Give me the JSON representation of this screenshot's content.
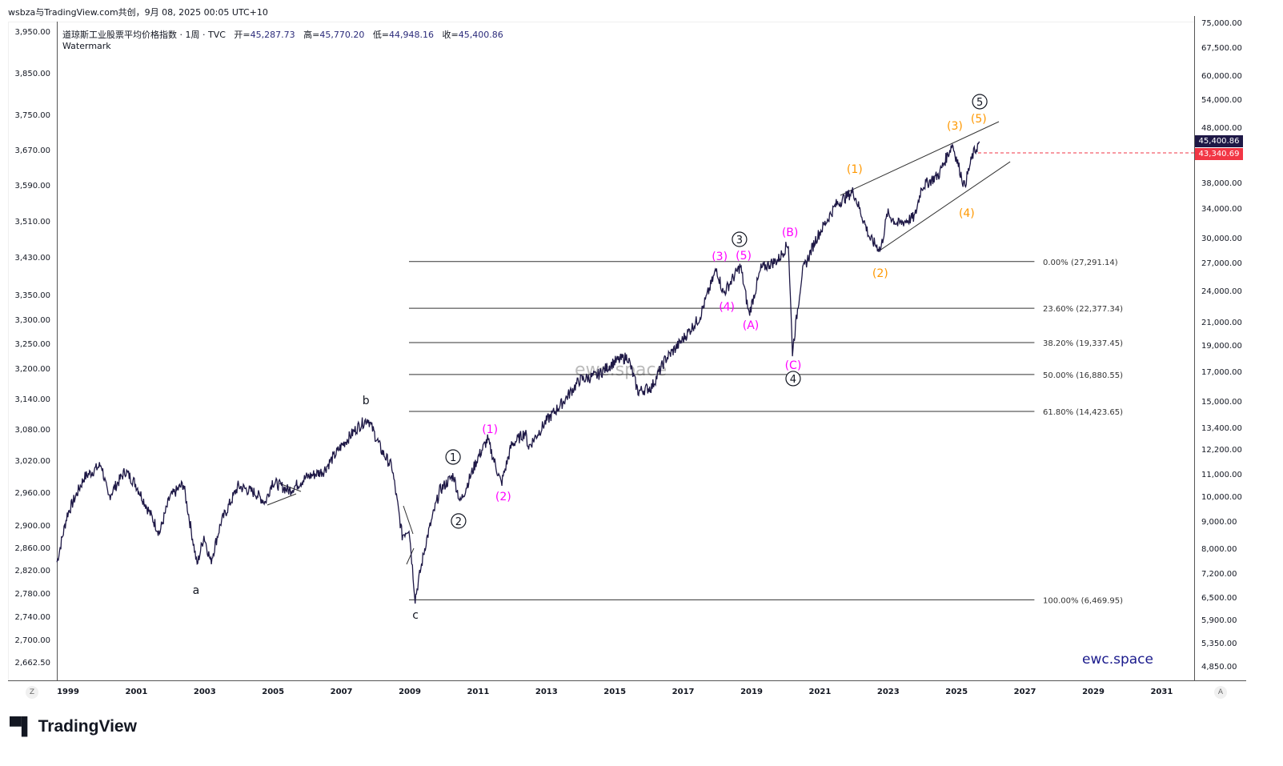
{
  "header": {
    "attribution": "wsbza与TradingView.com共创，9月 08, 2025 00:05 UTC+10"
  },
  "legend": {
    "symbol": "道琼斯工业股票平均价格指数 · 1周 · TVC",
    "open_label": "开=",
    "open": "45,287.73",
    "high_label": "高=",
    "high": "45,770.20",
    "low_label": "低=",
    "low": "44,948.16",
    "close_label": "收=",
    "close": "45,400.86",
    "watermark_line": "Watermark"
  },
  "axis_buttons": {
    "left": "Z",
    "right": "A"
  },
  "price_tags": {
    "last": "45,400.86",
    "last_color": "#1e1846",
    "line": "43,340.69",
    "line_color": "#f23645"
  },
  "watermarks": {
    "corner": "ewc.space",
    "center": "ewc.space"
  },
  "footer": {
    "logo": "TradingView"
  },
  "chart_data": {
    "type": "line",
    "scale": "log",
    "title": "道琼斯工业股票平均价格指数 · 1周 · TVC",
    "line_color": "#1e1846",
    "xlim": [
      1998.7,
      2032
    ],
    "ylim": [
      4850,
      75000
    ],
    "x_ticks": [
      "1999",
      "2001",
      "2003",
      "2005",
      "2007",
      "2009",
      "2011",
      "2013",
      "2015",
      "2017",
      "2019",
      "2021",
      "2023",
      "2025",
      "2027",
      "2029",
      "2031"
    ],
    "right_ticks": [
      75000,
      67500,
      60000,
      54000,
      48000,
      38000,
      34000,
      30000,
      27000,
      24000,
      21000,
      19000,
      17000,
      15000,
      13400,
      12200,
      11000,
      10000,
      9000,
      8000,
      7200,
      6500,
      5900,
      5350,
      4850
    ],
    "right_tick_labels": [
      "75,000.00",
      "67,500.00",
      "60,000.00",
      "54,000.00",
      "48,000.00",
      "38,000.00",
      "34,000.00",
      "30,000.00",
      "27,000.00",
      "24,000.00",
      "21,000.00",
      "19,000.00",
      "17,000.00",
      "15,000.00",
      "13,400.00",
      "12,200.00",
      "11,000.00",
      "10,000.00",
      "9,000.00",
      "8,000.00",
      "7,200.00",
      "6,500.00",
      "5,900.00",
      "5,350.00",
      "4,850.00"
    ],
    "left_tick_labels": [
      "3,950.00",
      "3,850.00",
      "3,750.00",
      "3,670.00",
      "3,590.00",
      "3,510.00",
      "3,430.00",
      "3,350.00",
      "3,300.00",
      "3,250.00",
      "3,200.00",
      "3,140.00",
      "3,080.00",
      "3,020.00",
      "2,960.00",
      "2,900.00",
      "2,860.00",
      "2,820.00",
      "2,780.00",
      "2,740.00",
      "2,700.00",
      "2,662.50"
    ],
    "series": [
      [
        1998.7,
        7600
      ],
      [
        1999.0,
        9300
      ],
      [
        1999.5,
        10900
      ],
      [
        2000.0,
        11500
      ],
      [
        2000.2,
        10000
      ],
      [
        2000.7,
        11200
      ],
      [
        2001.0,
        10600
      ],
      [
        2001.7,
        8600
      ],
      [
        2002.0,
        10000
      ],
      [
        2002.4,
        10600
      ],
      [
        2002.8,
        7500
      ],
      [
        2003.0,
        8500
      ],
      [
        2003.2,
        7600
      ],
      [
        2003.5,
        9000
      ],
      [
        2004.0,
        10500
      ],
      [
        2004.5,
        10200
      ],
      [
        2004.8,
        9800
      ],
      [
        2005.0,
        10700
      ],
      [
        2005.5,
        10300
      ],
      [
        2006.0,
        10900
      ],
      [
        2006.5,
        11200
      ],
      [
        2007.0,
        12400
      ],
      [
        2007.5,
        13500
      ],
      [
        2007.8,
        14000
      ],
      [
        2008.2,
        12200
      ],
      [
        2008.5,
        11400
      ],
      [
        2008.8,
        8500
      ],
      [
        2009.0,
        8800
      ],
      [
        2009.18,
        6500
      ],
      [
        2009.5,
        8300
      ],
      [
        2009.9,
        10300
      ],
      [
        2010.3,
        11000
      ],
      [
        2010.5,
        9800
      ],
      [
        2011.0,
        11800
      ],
      [
        2011.3,
        12800
      ],
      [
        2011.7,
        10600
      ],
      [
        2012.0,
        12500
      ],
      [
        2012.4,
        13200
      ],
      [
        2012.5,
        12400
      ],
      [
        2013.0,
        13800
      ],
      [
        2013.5,
        15000
      ],
      [
        2014.0,
        16500
      ],
      [
        2014.5,
        16800
      ],
      [
        2015.0,
        17800
      ],
      [
        2015.4,
        18200
      ],
      [
        2015.7,
        15700
      ],
      [
        2016.1,
        16000
      ],
      [
        2016.5,
        18000
      ],
      [
        2016.9,
        19200
      ],
      [
        2017.5,
        21500
      ],
      [
        2018.0,
        26500
      ],
      [
        2018.2,
        23800
      ],
      [
        2018.7,
        26800
      ],
      [
        2018.95,
        21800
      ],
      [
        2019.3,
        26500
      ],
      [
        2019.8,
        27500
      ],
      [
        2020.1,
        29500
      ],
      [
        2020.22,
        18600
      ],
      [
        2020.5,
        26000
      ],
      [
        2020.9,
        30000
      ],
      [
        2021.5,
        34800
      ],
      [
        2022.0,
        36800
      ],
      [
        2022.5,
        30000
      ],
      [
        2022.8,
        28700
      ],
      [
        2023.0,
        33500
      ],
      [
        2023.3,
        32000
      ],
      [
        2023.8,
        33000
      ],
      [
        2024.0,
        37500
      ],
      [
        2024.5,
        39500
      ],
      [
        2024.9,
        45000
      ],
      [
        2025.25,
        37600
      ],
      [
        2025.5,
        43000
      ],
      [
        2025.7,
        45400
      ]
    ],
    "fib_levels": [
      {
        "label": "0.00% (27,291.14)",
        "price": 27291.14
      },
      {
        "label": "23.60% (22,377.34)",
        "price": 22377.34
      },
      {
        "label": "38.20% (19,337.45)",
        "price": 19337.45
      },
      {
        "label": "50.00% (16,880.55)",
        "price": 16880.55
      },
      {
        "label": "61.80% (14,423.65)",
        "price": 14423.65
      },
      {
        "label": "100.00% (6,469.95)",
        "price": 6469.95
      }
    ],
    "fib_range": [
      2009.0,
      2027.3
    ],
    "horizontal_line": 43340.69,
    "trendlines": [
      [
        [
          2021.62,
          36180
        ],
        [
          2026.26,
          49500
        ]
      ],
      [
        [
          2022.77,
          28600
        ],
        [
          2026.59,
          41740
        ]
      ]
    ],
    "annotations": [
      {
        "text": "a",
        "x": 2002.77,
        "y": 6750,
        "color": "#131722",
        "circle": false
      },
      {
        "text": "b",
        "x": 2007.74,
        "y": 15130,
        "color": "#131722",
        "circle": false
      },
      {
        "text": "c",
        "x": 2009.19,
        "y": 6070,
        "color": "#131722",
        "circle": false
      },
      {
        "text": "1",
        "x": 2010.29,
        "y": 11880,
        "color": "#131722",
        "circle": true
      },
      {
        "text": "2",
        "x": 2010.45,
        "y": 9050,
        "color": "#131722",
        "circle": true
      },
      {
        "text": "3",
        "x": 2018.67,
        "y": 30000,
        "color": "#131722",
        "circle": true
      },
      {
        "text": "4",
        "x": 2020.24,
        "y": 16590,
        "color": "#131722",
        "circle": true
      },
      {
        "text": "5",
        "x": 2025.7,
        "y": 53900,
        "color": "#131722",
        "circle": true
      },
      {
        "text": "(1)",
        "x": 2011.37,
        "y": 13390,
        "color": "#ff00ff",
        "circle": false
      },
      {
        "text": "(2)",
        "x": 2011.76,
        "y": 10050,
        "color": "#ff00ff",
        "circle": false
      },
      {
        "text": "(3)",
        "x": 2018.09,
        "y": 27930,
        "color": "#ff00ff",
        "circle": false
      },
      {
        "text": "(5)",
        "x": 2018.79,
        "y": 28030,
        "color": "#ff00ff",
        "circle": false
      },
      {
        "text": "(4)",
        "x": 2018.3,
        "y": 22530,
        "color": "#ff00ff",
        "circle": false
      },
      {
        "text": "(A)",
        "x": 2019.0,
        "y": 20830,
        "color": "#ff00ff",
        "circle": false
      },
      {
        "text": "(B)",
        "x": 2020.15,
        "y": 30930,
        "color": "#ff00ff",
        "circle": false
      },
      {
        "text": "(C)",
        "x": 2020.24,
        "y": 17570,
        "color": "#ff00ff",
        "circle": false
      },
      {
        "text": "(1)",
        "x": 2022.04,
        "y": 40480,
        "color": "#ff9800",
        "circle": false
      },
      {
        "text": "(2)",
        "x": 2022.79,
        "y": 26010,
        "color": "#ff9800",
        "circle": false
      },
      {
        "text": "(3)",
        "x": 2024.97,
        "y": 48670,
        "color": "#ff9800",
        "circle": false
      },
      {
        "text": "(5)",
        "x": 2025.67,
        "y": 50170,
        "color": "#ff9800",
        "circle": false
      },
      {
        "text": "(4)",
        "x": 2025.32,
        "y": 33570,
        "color": "#ff9800",
        "circle": false
      }
    ]
  }
}
